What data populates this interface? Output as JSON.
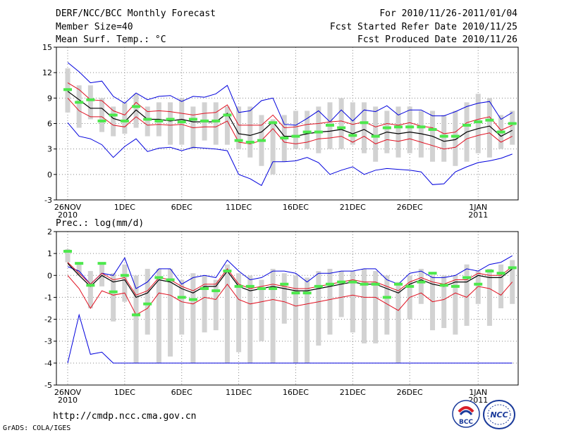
{
  "header": {
    "title": "DERF/NCC/BCC Monthly Forecast",
    "member_size": "Member Size=40",
    "variable1": "Mean Surf. Temp.: °C",
    "for_period": "For 2010/11/26-2011/01/04",
    "started": "Fcst Started Refer Date 2010/11/25",
    "produced": "Fcst Produced Date 2010/11/26"
  },
  "footer": {
    "url": "http://cmdp.ncc.cma.gov.cn",
    "credit": "GrADS: COLA/IGES",
    "logo1_text": "BCC",
    "logo2_text": "NCC"
  },
  "colors": {
    "box": "#d2d2d2",
    "ensemble_mean": "#000000",
    "spread": "#e01020",
    "extremes": "#0000dd",
    "observed": "#4ce84c",
    "grid": "#888888"
  },
  "chart_data": [
    {
      "type": "line",
      "title": "Mean Surf. Temp.: °C",
      "days": 40,
      "ylim": [
        -3,
        15
      ],
      "yticks": [
        -3,
        0,
        3,
        6,
        9,
        12,
        15
      ],
      "xticks": [
        {
          "day": 0,
          "label": "26NOV",
          "sub": "2010"
        },
        {
          "day": 5,
          "label": "1DEC",
          "sub": ""
        },
        {
          "day": 10,
          "label": "6DEC",
          "sub": ""
        },
        {
          "day": 15,
          "label": "11DEC",
          "sub": ""
        },
        {
          "day": 20,
          "label": "16DEC",
          "sub": ""
        },
        {
          "day": 25,
          "label": "21DEC",
          "sub": ""
        },
        {
          "day": 30,
          "label": "26DEC",
          "sub": ""
        },
        {
          "day": 36,
          "label": "1JAN",
          "sub": "2011"
        }
      ],
      "box_low": [
        7.3,
        5.5,
        6.5,
        5.0,
        4.5,
        4.8,
        5.5,
        4.5,
        4.5,
        3.5,
        3.5,
        3.0,
        4.0,
        3.5,
        3.5,
        3.0,
        2.0,
        1.0,
        0.0,
        1.5,
        3.0,
        3.0,
        2.5,
        3.0,
        3.0,
        3.5,
        2.5,
        1.5,
        2.5,
        2.0,
        2.5,
        2.0,
        1.5,
        1.5,
        1.0,
        1.5,
        2.5,
        2.0,
        3.0,
        3.5
      ],
      "box_high": [
        12.5,
        10.5,
        10.5,
        9.0,
        8.0,
        8.5,
        9.5,
        8.0,
        8.5,
        8.5,
        9.0,
        8.0,
        8.5,
        8.5,
        8.0,
        8.0,
        8.0,
        7.0,
        6.5,
        7.0,
        7.5,
        7.5,
        8.0,
        8.5,
        9.0,
        8.5,
        8.5,
        8.0,
        7.5,
        8.0,
        8.0,
        7.5,
        7.5,
        7.0,
        7.5,
        8.5,
        9.5,
        9.0,
        7.0,
        7.5
      ],
      "mean": [
        9.8,
        8.8,
        7.8,
        7.8,
        6.6,
        6.2,
        7.6,
        6.5,
        6.5,
        6.3,
        6.5,
        6.2,
        6.2,
        6.2,
        7.2,
        4.8,
        4.6,
        5.0,
        6.2,
        4.5,
        4.5,
        4.8,
        5.0,
        5.1,
        5.3,
        4.8,
        5.3,
        4.5,
        5.0,
        4.8,
        5.0,
        4.8,
        4.5,
        3.9,
        4.1,
        5.0,
        5.4,
        5.7,
        4.5,
        5.2
      ],
      "upper": [
        10.8,
        10.0,
        8.8,
        8.7,
        7.5,
        7.0,
        8.5,
        7.4,
        7.5,
        7.4,
        7.2,
        7.0,
        7.2,
        7.3,
        8.2,
        5.8,
        5.8,
        5.8,
        7.0,
        5.5,
        5.6,
        5.9,
        6.0,
        6.2,
        6.3,
        5.9,
        6.2,
        5.6,
        6.0,
        5.8,
        6.1,
        5.7,
        5.5,
        4.8,
        5.0,
        6.1,
        6.5,
        6.8,
        5.2,
        5.8
      ],
      "lower": [
        9.0,
        7.5,
        6.8,
        6.8,
        5.8,
        5.6,
        6.8,
        5.8,
        5.9,
        5.8,
        5.9,
        5.5,
        5.6,
        5.6,
        6.3,
        3.8,
        3.6,
        4.0,
        5.4,
        3.8,
        3.6,
        3.8,
        4.2,
        4.3,
        4.5,
        3.8,
        4.5,
        3.6,
        4.1,
        3.9,
        4.2,
        3.8,
        3.4,
        3.0,
        3.2,
        4.2,
        4.6,
        4.9,
        3.8,
        4.5
      ],
      "max": [
        13.2,
        12.1,
        10.8,
        11.0,
        9.2,
        8.4,
        9.6,
        8.8,
        9.2,
        9.3,
        8.6,
        9.2,
        9.1,
        9.5,
        10.5,
        7.3,
        7.5,
        8.7,
        9.0,
        5.9,
        5.8,
        6.6,
        7.5,
        6.2,
        7.6,
        6.3,
        7.6,
        7.4,
        8.1,
        7.0,
        7.6,
        7.6,
        6.9,
        6.9,
        7.4,
        8.0,
        8.4,
        8.6,
        6.5,
        7.3
      ],
      "min": [
        6.1,
        4.5,
        4.2,
        3.5,
        2.0,
        3.3,
        4.2,
        2.7,
        3.1,
        3.2,
        2.8,
        3.2,
        3.1,
        3.0,
        2.8,
        0.0,
        -0.5,
        -1.3,
        1.5,
        1.5,
        1.6,
        2.0,
        1.4,
        0.0,
        0.5,
        0.9,
        0.0,
        0.5,
        0.7,
        0.6,
        0.5,
        0.3,
        -1.2,
        -1.1,
        0.3,
        0.9,
        1.4,
        1.6,
        1.9,
        2.4
      ],
      "observed": [
        10.0,
        8.5,
        8.8,
        6.3,
        7.0,
        6.3,
        8.0,
        6.5,
        6.3,
        6.5,
        6.2,
        6.5,
        6.3,
        6.3,
        7.0,
        4.0,
        3.8,
        4.0,
        6.1,
        4.3,
        4.5,
        5.0,
        5.0,
        5.8,
        5.5,
        4.6,
        6.1,
        4.5,
        5.5,
        5.6,
        5.6,
        5.6,
        5.3,
        4.5,
        4.5,
        5.8,
        6.2,
        6.4,
        5.0,
        6.0
      ]
    },
    {
      "type": "line",
      "title": "Prec.: log(mm/d)",
      "days": 40,
      "ylim": [
        -5,
        2
      ],
      "yticks": [
        -5,
        -4,
        -3,
        -2,
        -1,
        0,
        1,
        2
      ],
      "xticks": [
        {
          "day": 0,
          "label": "26NOV",
          "sub": "2010"
        },
        {
          "day": 5,
          "label": "1DEC",
          "sub": ""
        },
        {
          "day": 10,
          "label": "6DEC",
          "sub": ""
        },
        {
          "day": 15,
          "label": "11DEC",
          "sub": ""
        },
        {
          "day": 20,
          "label": "16DEC",
          "sub": ""
        },
        {
          "day": 25,
          "label": "21DEC",
          "sub": ""
        },
        {
          "day": 30,
          "label": "26DEC",
          "sub": ""
        },
        {
          "day": 36,
          "label": "1JAN",
          "sub": "2011"
        }
      ],
      "box_low": [
        0.6,
        0.0,
        -1.5,
        -0.5,
        -2.1,
        -1.2,
        -4.0,
        -2.7,
        -4.0,
        -3.7,
        -2.7,
        -4.0,
        -2.6,
        -2.5,
        -4.0,
        -3.5,
        -4.0,
        -3.0,
        -4.0,
        -2.2,
        -4.0,
        -4.0,
        -3.2,
        -2.7,
        -1.9,
        -2.6,
        -3.1,
        -3.1,
        -2.7,
        -4.0,
        -2.0,
        -1.3,
        -2.5,
        -2.4,
        -2.7,
        -2.3,
        -1.3,
        -2.3,
        -1.5,
        -1.3
      ],
      "box_high": [
        1.2,
        0.6,
        0.2,
        0.6,
        0.1,
        0.5,
        0.0,
        0.3,
        0.3,
        0.3,
        -0.2,
        0.1,
        0.0,
        -0.2,
        0.5,
        0.1,
        0.0,
        -0.2,
        0.3,
        0.1,
        0.0,
        -0.1,
        0.2,
        0.3,
        0.2,
        0.2,
        0.3,
        0.2,
        0.0,
        -0.3,
        0.0,
        0.3,
        0.0,
        0.0,
        0.0,
        0.5,
        0.2,
        0.3,
        0.5,
        0.7
      ],
      "mean": [
        0.55,
        0.0,
        -0.5,
        0.0,
        -0.3,
        -0.2,
        -1.0,
        -0.8,
        -0.2,
        -0.3,
        -0.6,
        -0.8,
        -0.5,
        -0.5,
        0.2,
        -0.5,
        -0.7,
        -0.6,
        -0.5,
        -0.6,
        -0.7,
        -0.7,
        -0.6,
        -0.5,
        -0.4,
        -0.3,
        -0.4,
        -0.4,
        -0.6,
        -0.8,
        -0.4,
        -0.2,
        -0.4,
        -0.5,
        -0.3,
        -0.3,
        0.0,
        -0.1,
        -0.1,
        0.3
      ],
      "upper": [
        0.6,
        0.1,
        -0.4,
        0.1,
        -0.2,
        -0.1,
        -0.9,
        -0.7,
        -0.1,
        -0.2,
        -0.5,
        -0.7,
        -0.4,
        -0.4,
        0.3,
        -0.4,
        -0.6,
        -0.5,
        -0.4,
        -0.5,
        -0.6,
        -0.6,
        -0.5,
        -0.4,
        -0.3,
        -0.2,
        -0.3,
        -0.3,
        -0.5,
        -0.7,
        -0.3,
        -0.1,
        -0.3,
        -0.4,
        -0.2,
        -0.2,
        0.1,
        0.0,
        0.0,
        0.4
      ],
      "lower": [
        0.0,
        -0.6,
        -1.5,
        -0.7,
        -0.9,
        -0.8,
        -1.8,
        -1.5,
        -0.8,
        -0.9,
        -1.2,
        -1.3,
        -1.0,
        -1.1,
        -0.4,
        -1.1,
        -1.3,
        -1.2,
        -1.1,
        -1.2,
        -1.4,
        -1.3,
        -1.2,
        -1.1,
        -1.0,
        -0.9,
        -1.0,
        -1.0,
        -1.3,
        -1.6,
        -1.0,
        -0.8,
        -1.2,
        -1.1,
        -0.8,
        -1.0,
        -0.5,
        -0.6,
        -0.9,
        -0.3
      ],
      "max": [
        0.4,
        0.2,
        -0.4,
        0.1,
        0.0,
        0.8,
        -0.6,
        -0.3,
        0.3,
        0.3,
        -0.4,
        -0.1,
        0.0,
        -0.1,
        0.7,
        0.2,
        -0.2,
        -0.1,
        0.2,
        0.2,
        0.1,
        -0.3,
        0.1,
        0.1,
        0.2,
        0.2,
        0.3,
        0.3,
        -0.2,
        -0.4,
        0.1,
        0.2,
        -0.1,
        -0.1,
        0.0,
        0.3,
        0.2,
        0.5,
        0.6,
        0.9
      ],
      "min": [
        -4.0,
        -1.8,
        -3.6,
        -3.5,
        -4.0,
        -4.0,
        -4.0,
        -4.0,
        -4.0,
        -4.0,
        -4.0,
        -4.0,
        -4.0,
        -4.0,
        -4.0,
        -4.0,
        -4.0,
        -4.0,
        -4.0,
        -4.0,
        -4.0,
        -4.0,
        -4.0,
        -4.0,
        -4.0,
        -4.0,
        -4.0,
        -4.0,
        -4.0,
        -4.0,
        -4.0,
        -4.0,
        -4.0,
        -4.0,
        -4.0,
        -4.0,
        -4.0,
        -4.0,
        -4.0,
        -4.0
      ],
      "observed": [
        1.1,
        0.55,
        -0.45,
        0.55,
        -0.75,
        0.0,
        -1.8,
        -1.3,
        -0.1,
        -0.2,
        -1.0,
        -1.1,
        -0.6,
        -0.7,
        0.2,
        -0.5,
        -0.5,
        -0.6,
        -0.6,
        -0.4,
        -0.8,
        -0.8,
        -0.5,
        -0.4,
        -0.3,
        -0.3,
        -0.4,
        -0.4,
        -1.0,
        -0.4,
        -0.5,
        -0.3,
        0.1,
        -0.45,
        -0.5,
        -0.1,
        -0.4,
        0.2,
        0.1,
        0.35
      ]
    }
  ]
}
